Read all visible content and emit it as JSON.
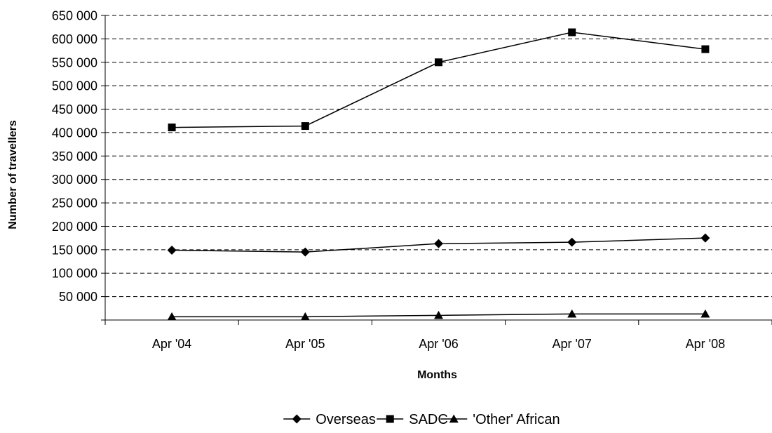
{
  "chart_data": {
    "type": "line",
    "title": "",
    "xlabel": "Months",
    "ylabel": "Number of travellers",
    "categories": [
      "Apr '04",
      "Apr '05",
      "Apr '06",
      "Apr '07",
      "Apr '08"
    ],
    "ylim": [
      0,
      650000
    ],
    "y_ticks": [
      50000,
      100000,
      150000,
      200000,
      250000,
      300000,
      350000,
      400000,
      450000,
      500000,
      550000,
      600000,
      650000
    ],
    "y_tick_labels": [
      "50 000",
      "100 000",
      "150 000",
      "200 000",
      "250 000",
      "300 000",
      "350 000",
      "400 000",
      "450 000",
      "500 000",
      "550 000",
      "600 000",
      "650 000"
    ],
    "grid": true,
    "legend_position": "bottom",
    "series": [
      {
        "name": "Overseas",
        "marker": "diamond",
        "values": [
          149000,
          145000,
          163000,
          166000,
          175000
        ]
      },
      {
        "name": "SADC",
        "marker": "square",
        "values": [
          411000,
          414000,
          550000,
          614000,
          578000
        ]
      },
      {
        "name": "'Other' African",
        "marker": "triangle",
        "values": [
          7000,
          7000,
          10000,
          13000,
          13000
        ]
      }
    ],
    "colors": {
      "line": "#000000",
      "grid": "#000000",
      "background": "#ffffff"
    }
  }
}
